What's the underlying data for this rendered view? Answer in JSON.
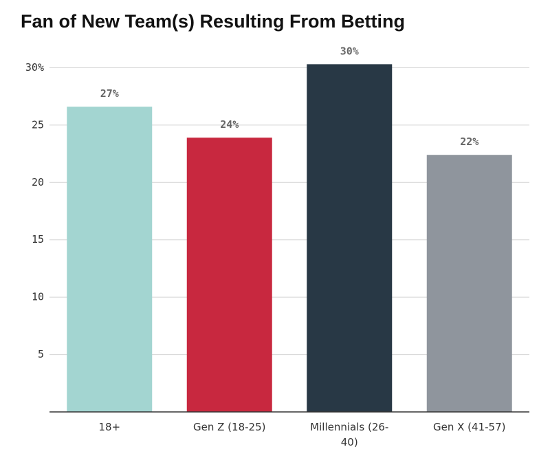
{
  "chart_data": {
    "type": "bar",
    "title": "Fan of New Team(s) Resulting From Betting",
    "categories": [
      "18+",
      "Gen Z (18-25)",
      "Millennials (26-40)",
      "Gen X (41-57)"
    ],
    "values": [
      26.6,
      23.9,
      30.3,
      22.4
    ],
    "value_labels": [
      "27%",
      "24%",
      "30%",
      "22%"
    ],
    "colors": [
      "#a3d5d1",
      "#c8283f",
      "#283845",
      "#8f959d"
    ],
    "ylim": [
      0,
      32
    ],
    "yticks": [
      5,
      10,
      15,
      20,
      25,
      {
        "value": 30,
        "label": "30%"
      }
    ],
    "grid": true
  }
}
